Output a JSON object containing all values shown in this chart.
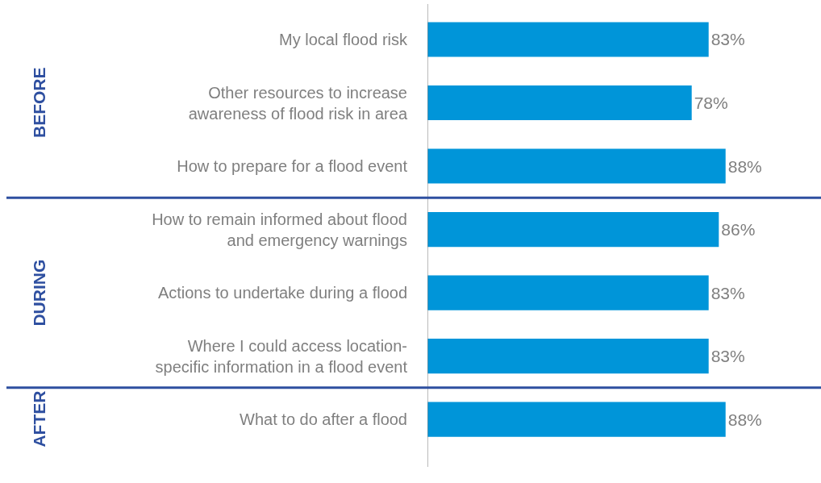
{
  "chart_data": {
    "type": "bar",
    "orientation": "horizontal",
    "categories": [
      "My local flood risk",
      "Other resources to increase\nawareness of flood risk in area",
      "How to prepare for a flood event",
      "How to remain informed about flood\nand emergency warnings",
      "Actions to undertake during a flood",
      "Where I could access location-\nspecific information in a flood event",
      "What to do after a flood"
    ],
    "values": [
      83,
      78,
      88,
      86,
      83,
      83,
      88
    ],
    "value_labels": [
      "83%",
      "78%",
      "88%",
      "86%",
      "83%",
      "83%",
      "88%"
    ],
    "color": "#0095d9",
    "annotations": [
      "BEFORE",
      "DURING",
      "AFTER"
    ]
  }
}
